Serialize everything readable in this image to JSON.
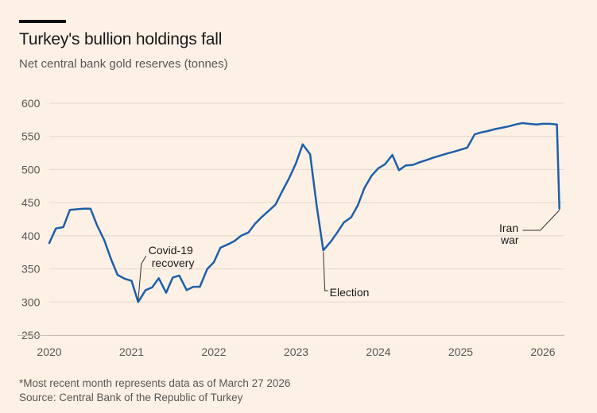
{
  "header": {
    "title": "Turkey's bullion holdings fall",
    "subtitle": "Net central bank gold reserves (tonnes)"
  },
  "footer": {
    "footnote": "*Most recent month represents data as of March 27 2026",
    "source": "Source: Central Bank of the Republic of Turkey"
  },
  "colors": {
    "line": "#1f5fa8",
    "grid": "#e3d7cb",
    "background": "#fdf1e6"
  },
  "chart_data": {
    "type": "line",
    "title": "Turkey's bullion holdings fall",
    "subtitle": "Net central bank gold reserves (tonnes)",
    "xlabel": "",
    "ylabel": "",
    "xlim": [
      2020.0,
      2026.33
    ],
    "ylim": [
      250,
      600
    ],
    "y_ticks": [
      250,
      300,
      350,
      400,
      450,
      500,
      550,
      600
    ],
    "x_ticks": [
      2020,
      2021,
      2022,
      2023,
      2024,
      2025,
      2026
    ],
    "grid": "horizontal",
    "series": [
      {
        "name": "Net central bank gold reserves",
        "x": [
          2020.0,
          2020.08,
          2020.17,
          2020.25,
          2020.33,
          2020.42,
          2020.5,
          2020.58,
          2020.67,
          2020.75,
          2020.83,
          2020.92,
          2021.0,
          2021.08,
          2021.17,
          2021.25,
          2021.33,
          2021.42,
          2021.5,
          2021.58,
          2021.67,
          2021.75,
          2021.83,
          2021.92,
          2022.0,
          2022.08,
          2022.17,
          2022.25,
          2022.33,
          2022.42,
          2022.5,
          2022.58,
          2022.67,
          2022.75,
          2022.83,
          2022.92,
          2023.0,
          2023.08,
          2023.17,
          2023.25,
          2023.33,
          2023.42,
          2023.5,
          2023.58,
          2023.67,
          2023.75,
          2023.83,
          2023.92,
          2024.0,
          2024.08,
          2024.17,
          2024.25,
          2024.33,
          2024.42,
          2024.5,
          2024.58,
          2024.67,
          2024.75,
          2024.83,
          2024.92,
          2025.0,
          2025.08,
          2025.17,
          2025.25,
          2025.33,
          2025.42,
          2025.5,
          2025.58,
          2025.67,
          2025.75,
          2025.83,
          2025.92,
          2026.0,
          2026.08,
          2026.17,
          2026.2
        ],
        "values": [
          389,
          411,
          413,
          439,
          440,
          441,
          441,
          416,
          393,
          365,
          341,
          335,
          332,
          300,
          318,
          322,
          336,
          314,
          337,
          340,
          318,
          323,
          323,
          350,
          360,
          382,
          387,
          392,
          400,
          405,
          418,
          428,
          438,
          447,
          467,
          488,
          510,
          538,
          523,
          445,
          378,
          391,
          405,
          420,
          428,
          446,
          472,
          491,
          502,
          508,
          522,
          499,
          506,
          507,
          511,
          514,
          518,
          521,
          524,
          527,
          530,
          533,
          553,
          556,
          558,
          561,
          563,
          565,
          568,
          570,
          569,
          568,
          569,
          569,
          568,
          441
        ]
      }
    ],
    "annotations": [
      {
        "label_lines": [
          "Covid-19",
          "recovery"
        ],
        "x": 2021.08,
        "y": 300
      },
      {
        "label_lines": [
          "Election"
        ],
        "x": 2023.33,
        "y": 378
      },
      {
        "label_lines": [
          "Iran",
          "war"
        ],
        "x": 2026.2,
        "y": 441
      }
    ]
  }
}
